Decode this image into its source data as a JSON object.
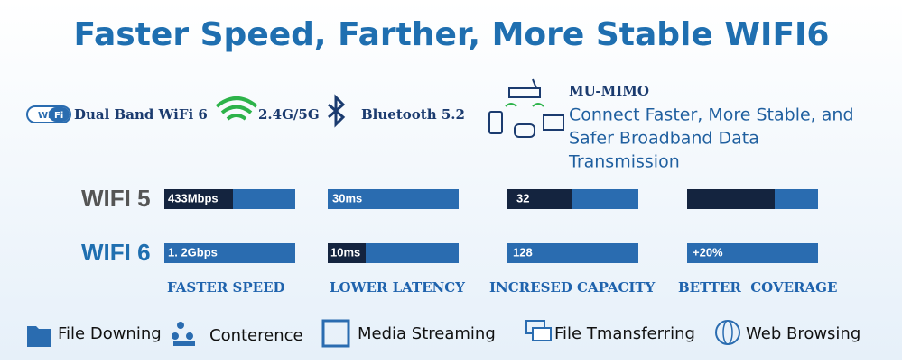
{
  "title": "Faster Speed, Farther, More Stable WIFI6",
  "features": {
    "wifi_badge": [
      "Wi",
      "Fi"
    ],
    "items": [
      "Dual Band WiFi 6",
      "2.4G/5G",
      "Bluetooth 5.2"
    ]
  },
  "mu_mimo": {
    "title": "MU-MIMO",
    "lines": [
      "Connect Faster, More Stable, and",
      "Safer Broadband Data",
      "Transmission"
    ]
  },
  "comparison": {
    "rows": [
      {
        "name": "WIFI 5",
        "cells": [
          "433Mbps",
          "30ms",
          "32"
        ]
      },
      {
        "name": "WIFI 6",
        "cells": [
          "1. 2Gbps",
          "10ms",
          "128",
          "+20%"
        ]
      }
    ],
    "metrics": [
      "FASTER SPEED",
      "LOWER LATENCY",
      "INCRESED CAPACITY",
      "BETTER  COVERAGE"
    ]
  },
  "applications": [
    "File Downing",
    "Conterence",
    "Media Streaming",
    "File Tmansferring",
    "Web Browsing"
  ]
}
